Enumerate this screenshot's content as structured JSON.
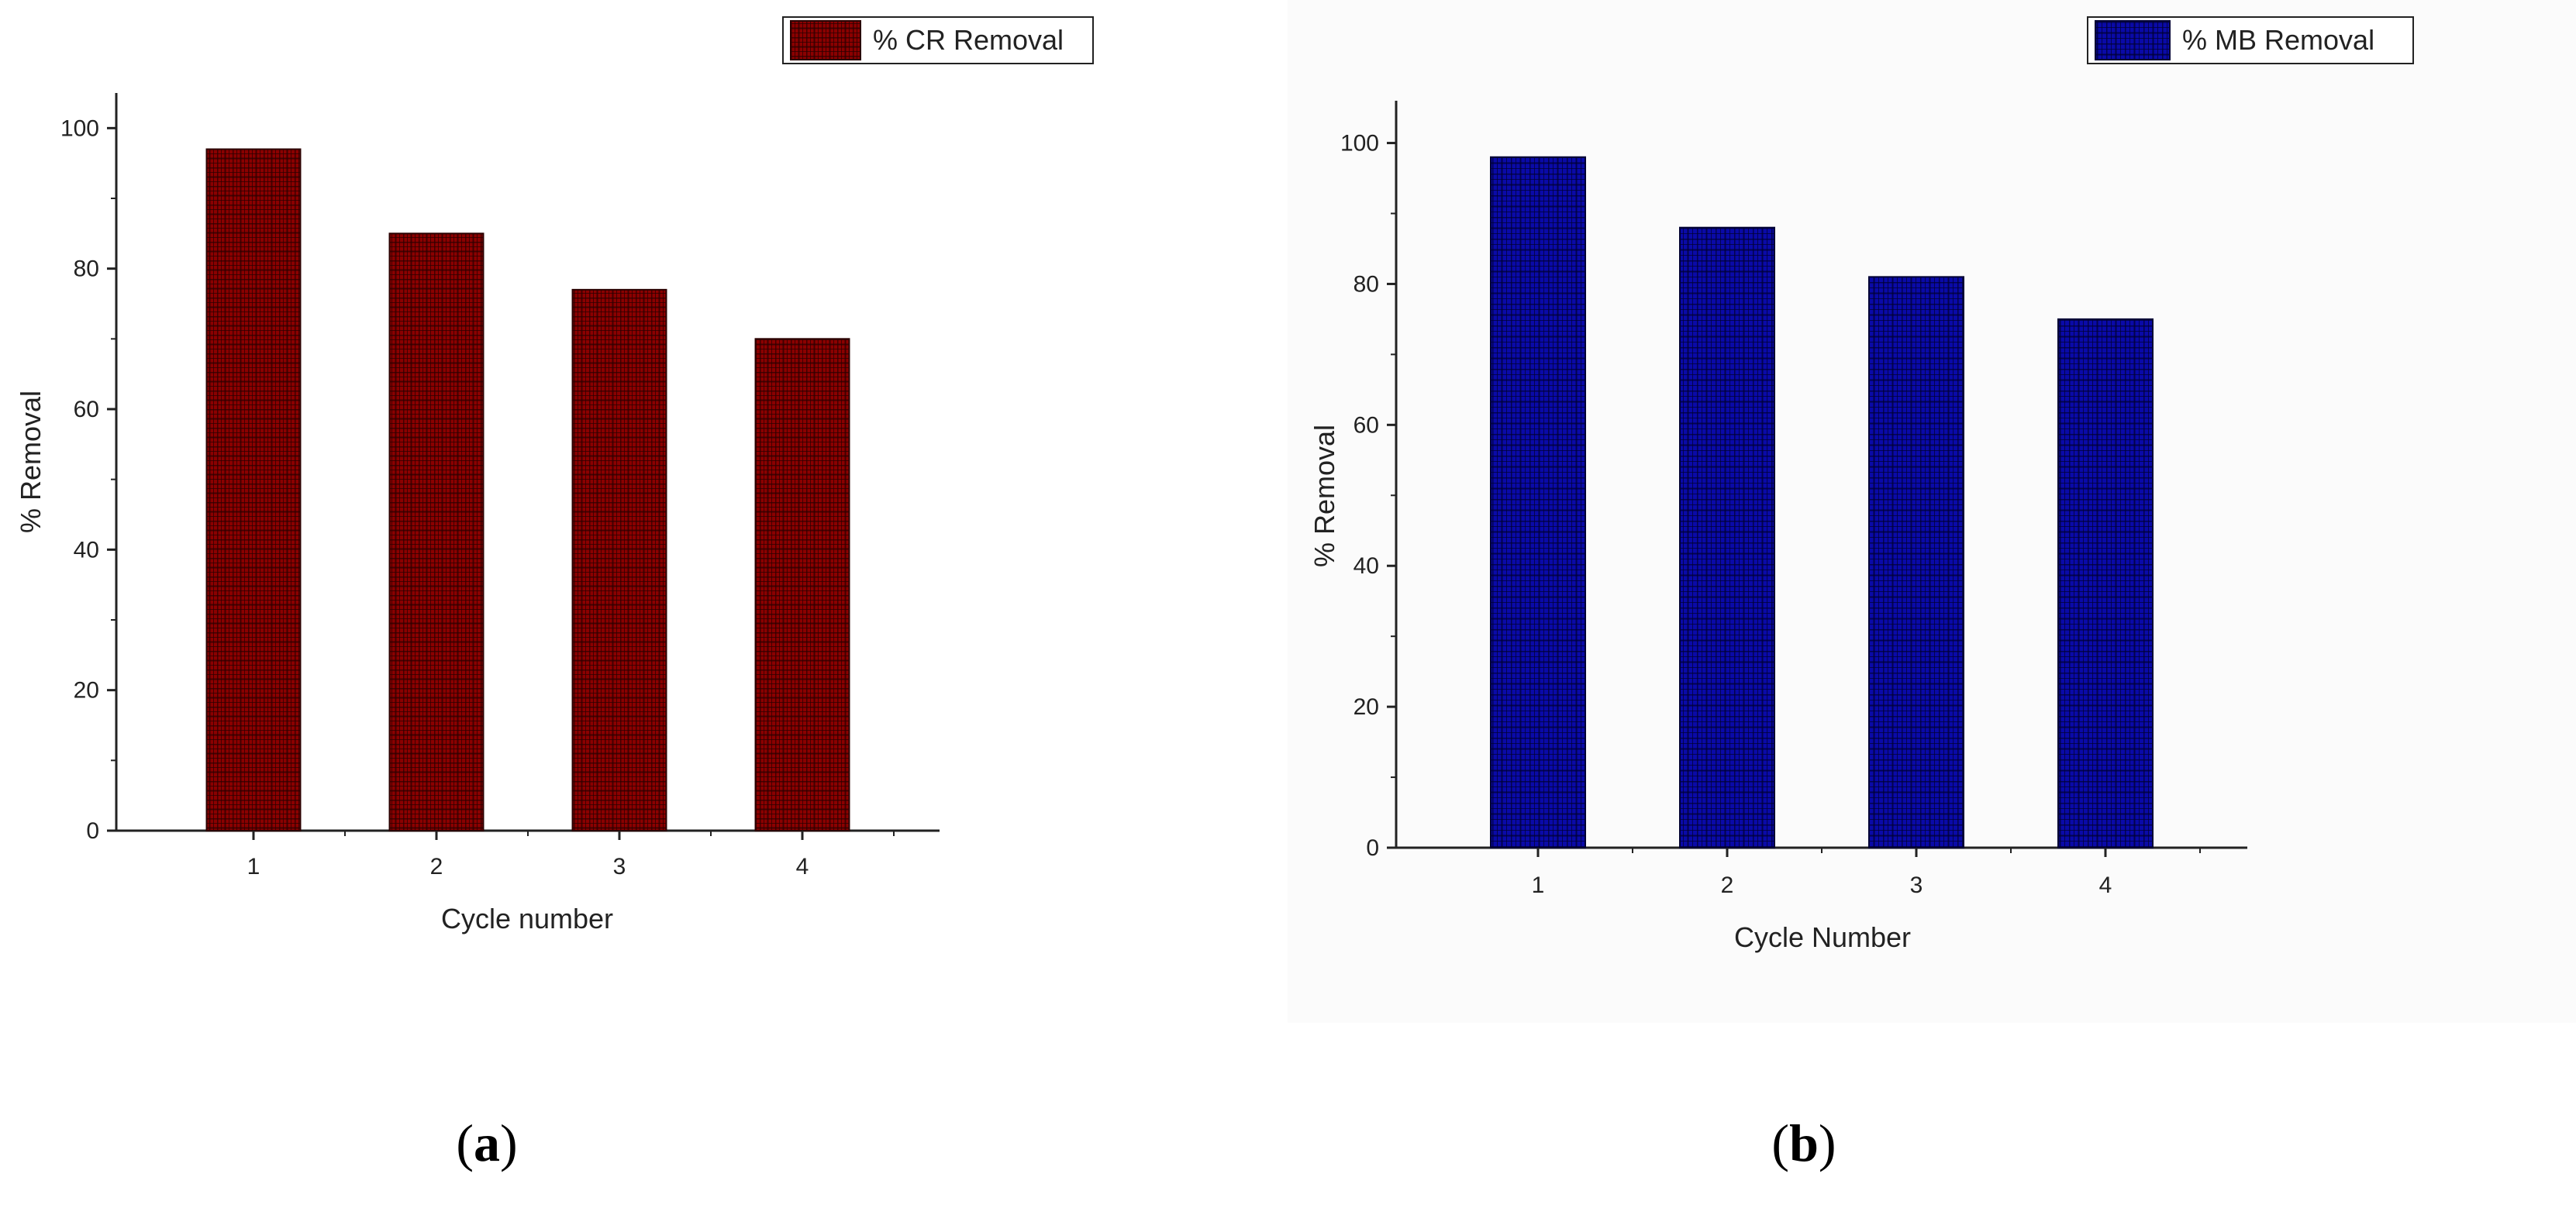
{
  "colors": {
    "panel_a_bar": "#8b0000",
    "panel_a_hatch": "#2a0000",
    "panel_b_bar": "#0a0aa8",
    "panel_b_hatch": "#000033",
    "axis": "#222222",
    "panel_b_background": "#fbfbfb"
  },
  "chart_data": [
    {
      "panel": "a",
      "type": "bar",
      "title": "",
      "categories": [
        "1",
        "2",
        "3",
        "4"
      ],
      "series": [
        {
          "name": "% CR Removal",
          "values": [
            97,
            85,
            77,
            70
          ]
        }
      ],
      "xlabel": "Cycle number",
      "ylabel": "% Removal",
      "ylim": [
        0,
        105
      ],
      "yticks": [
        0,
        20,
        40,
        60,
        80,
        100
      ],
      "legend": "top-right",
      "grid": false,
      "caption": {
        "open": "(",
        "letter": "a",
        "close": ")"
      }
    },
    {
      "panel": "b",
      "type": "bar",
      "title": "",
      "categories": [
        "1",
        "2",
        "3",
        "4"
      ],
      "series": [
        {
          "name": "% MB Removal",
          "values": [
            98,
            88,
            81,
            75
          ]
        }
      ],
      "xlabel": "Cycle Number",
      "ylabel": "% Removal",
      "ylim": [
        0,
        106
      ],
      "yticks": [
        0,
        20,
        40,
        60,
        80,
        100
      ],
      "legend": "top-right",
      "grid": false,
      "caption": {
        "open": "(",
        "letter": "b",
        "close": ")"
      }
    }
  ]
}
